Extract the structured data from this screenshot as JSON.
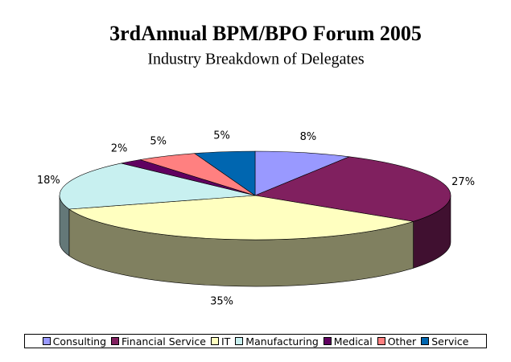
{
  "chart_data": {
    "type": "pie3d",
    "title": "3rdAnnual BPM/BPO Forum 2005",
    "subtitle": "Industry Breakdown of Delegates",
    "categories": [
      "Consulting",
      "Financial Service",
      "IT",
      "Manufacturing",
      "Medical",
      "Other",
      "Service"
    ],
    "values": [
      8,
      27,
      35,
      18,
      2,
      5,
      5
    ],
    "value_labels": [
      "8%",
      "27%",
      "35%",
      "18%",
      "2%",
      "5%",
      "5%"
    ],
    "colors": [
      "#9999ff",
      "#80205f",
      "#ffffc0",
      "#c8f0f0",
      "#600060",
      "#ff8080",
      "#0066b0"
    ],
    "legend": "bottom"
  }
}
